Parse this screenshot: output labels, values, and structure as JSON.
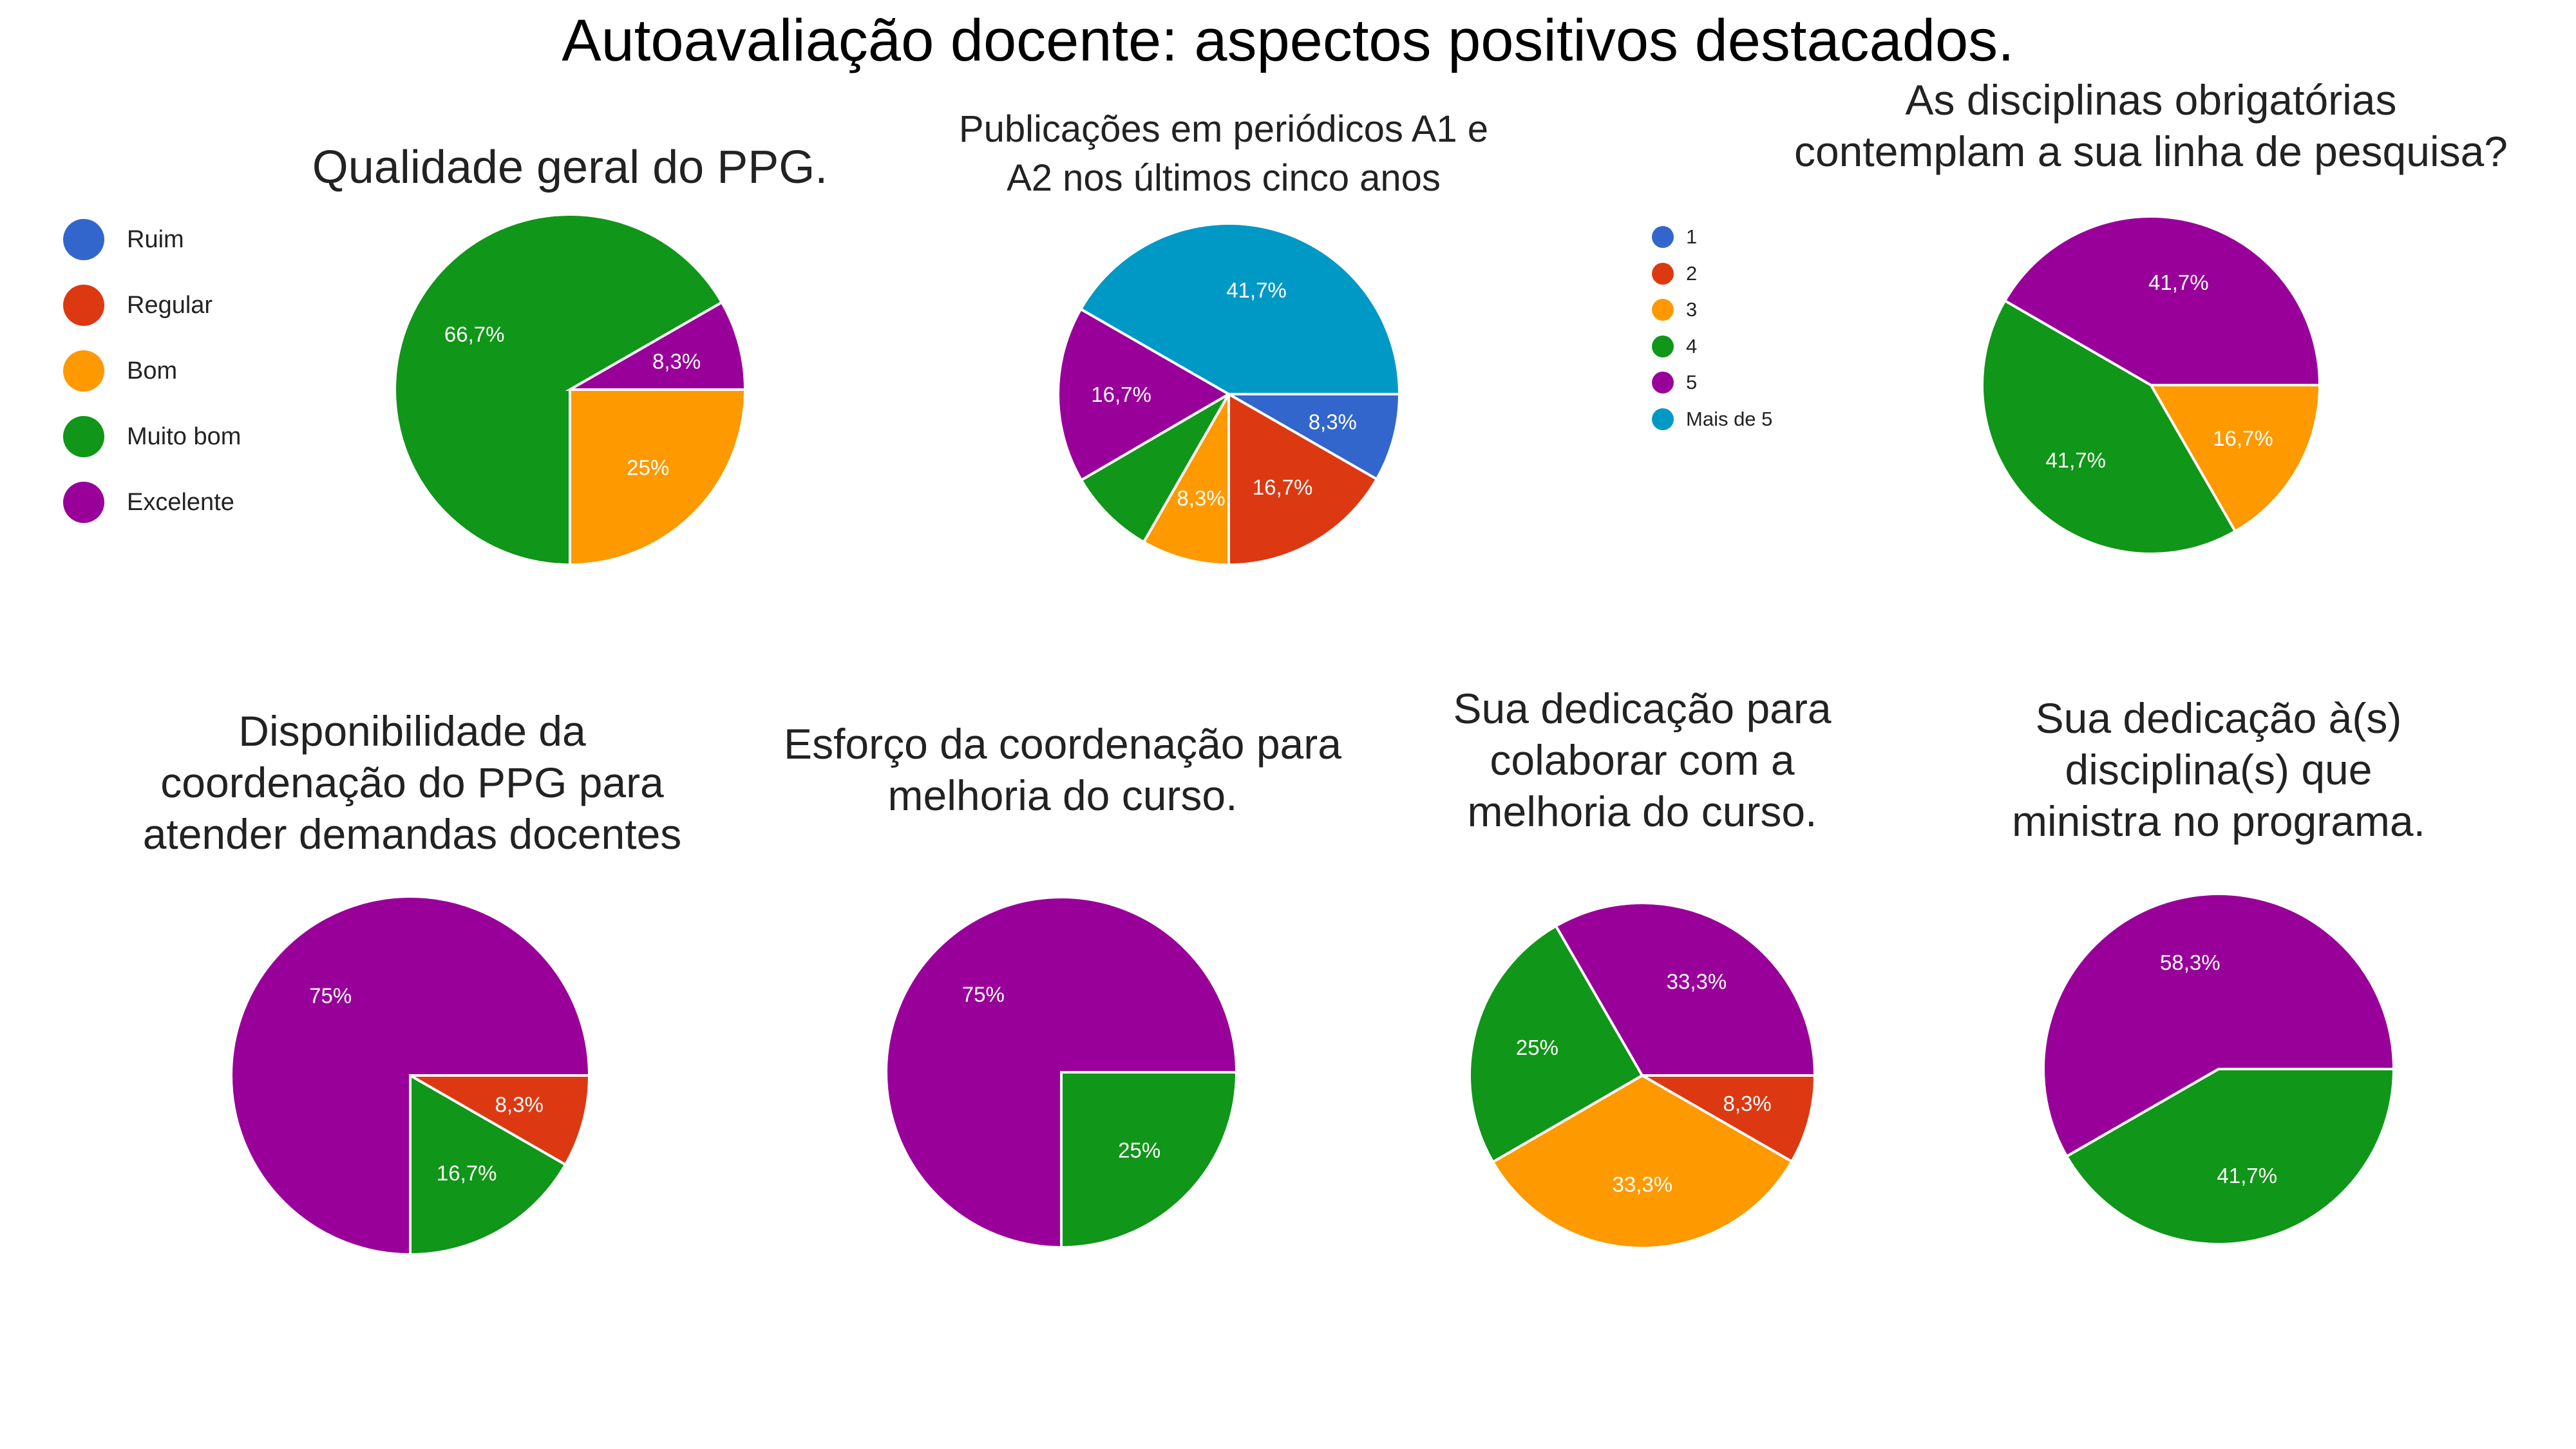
{
  "title": "Autoavaliação docente: aspectos positivos destacados.",
  "legend_ratings": [
    {
      "label": "Ruim",
      "color": "#3366cc"
    },
    {
      "label": "Regular",
      "color": "#dc3912"
    },
    {
      "label": "Bom",
      "color": "#ff9900"
    },
    {
      "label": "Muito bom",
      "color": "#109618"
    },
    {
      "label": "Excelente",
      "color": "#990099"
    }
  ],
  "legend_counts": [
    {
      "label": "1",
      "color": "#3366cc"
    },
    {
      "label": "2",
      "color": "#dc3912"
    },
    {
      "label": "3",
      "color": "#ff9900"
    },
    {
      "label": "4",
      "color": "#109618"
    },
    {
      "label": "5",
      "color": "#990099"
    },
    {
      "label": "Mais de 5",
      "color": "#0099c6"
    }
  ],
  "chart_data": [
    {
      "type": "pie",
      "title": "Qualidade geral do PPG.",
      "slices": [
        {
          "label": "Bom",
          "value": 25,
          "display": "25%",
          "color": "#ff9900"
        },
        {
          "label": "Muito bom",
          "value": 66.7,
          "display": "66,7%",
          "color": "#109618"
        },
        {
          "label": "Excelente",
          "value": 8.3,
          "display": "8,3%",
          "color": "#990099"
        }
      ]
    },
    {
      "type": "pie",
      "title": "Publicações em periódicos A1 e\nA2 nos últimos cinco anos",
      "slices": [
        {
          "label": "1",
          "value": 8.3,
          "display": "8,3%",
          "color": "#3366cc"
        },
        {
          "label": "2",
          "value": 16.7,
          "display": "16,7%",
          "color": "#dc3912"
        },
        {
          "label": "3",
          "value": 8.3,
          "display": "8,3%",
          "color": "#ff9900"
        },
        {
          "label": "4",
          "value": 8.3,
          "display": "",
          "color": "#109618"
        },
        {
          "label": "5",
          "value": 16.7,
          "display": "16,7%",
          "color": "#990099"
        },
        {
          "label": "Mais de 5",
          "value": 41.7,
          "display": "41,7%",
          "color": "#0099c6"
        }
      ]
    },
    {
      "type": "pie",
      "title": "As disciplinas obrigatórias\ncontemplam a sua linha de pesquisa?",
      "slices": [
        {
          "label": "3",
          "value": 16.7,
          "display": "16,7%",
          "color": "#ff9900"
        },
        {
          "label": "4",
          "value": 41.7,
          "display": "41,7%",
          "color": "#109618"
        },
        {
          "label": "5",
          "value": 41.7,
          "display": "41,7%",
          "color": "#990099"
        }
      ]
    },
    {
      "type": "pie",
      "title": "Disponibilidade da\ncoordenação do PPG para\natender demandas docentes",
      "slices": [
        {
          "label": "Regular",
          "value": 8.3,
          "display": "8,3%",
          "color": "#dc3912"
        },
        {
          "label": "Muito bom",
          "value": 16.7,
          "display": "16,7%",
          "color": "#109618"
        },
        {
          "label": "Excelente",
          "value": 75,
          "display": "75%",
          "color": "#990099"
        }
      ]
    },
    {
      "type": "pie",
      "title": "Esforço da coordenação para\nmelhoria do curso.",
      "slices": [
        {
          "label": "Muito bom",
          "value": 25,
          "display": "25%",
          "color": "#109618"
        },
        {
          "label": "Excelente",
          "value": 75,
          "display": "75%",
          "color": "#990099"
        }
      ]
    },
    {
      "type": "pie",
      "title": "Sua dedicação para\ncolaborar com a\nmelhoria do curso.",
      "slices": [
        {
          "label": "Regular",
          "value": 8.3,
          "display": "8,3%",
          "color": "#dc3912"
        },
        {
          "label": "Bom",
          "value": 33.3,
          "display": "33,3%",
          "color": "#ff9900"
        },
        {
          "label": "Muito bom",
          "value": 25,
          "display": "25%",
          "color": "#109618"
        },
        {
          "label": "Excelente",
          "value": 33.3,
          "display": "33,3%",
          "color": "#990099"
        }
      ]
    },
    {
      "type": "pie",
      "title": "Sua dedicação à(s)\ndisciplina(s) que\nministra no programa.",
      "slices": [
        {
          "label": "Muito bom",
          "value": 41.7,
          "display": "41,7%",
          "color": "#109618"
        },
        {
          "label": "Excelente",
          "value": 58.3,
          "display": "58,3%",
          "color": "#990099"
        }
      ]
    }
  ]
}
